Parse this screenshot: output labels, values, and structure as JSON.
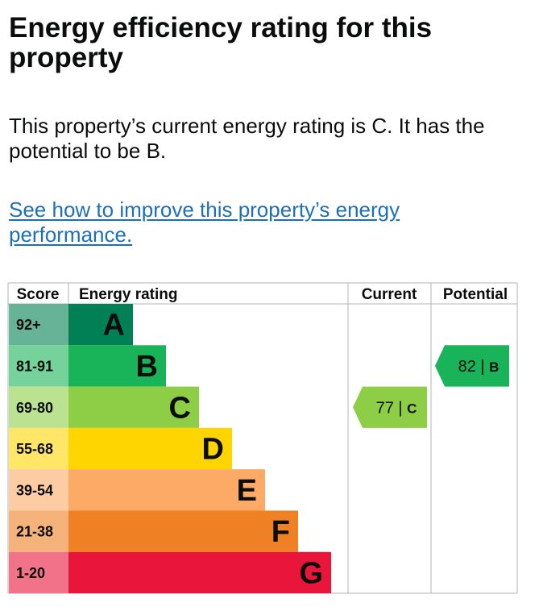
{
  "page": {
    "title": "Energy efficiency rating for this property",
    "summary": "This property’s current energy rating is C. It has the potential to be B.",
    "improve_link": "See how to improve this property’s energy performance."
  },
  "chart_data": {
    "type": "bar",
    "columns": {
      "score": "Score",
      "rating": "Energy rating",
      "current": "Current",
      "potential": "Potential"
    },
    "bands": [
      {
        "score": "92+",
        "letter": "A",
        "color": "#008054",
        "score_bg": "#66b398"
      },
      {
        "score": "81-91",
        "letter": "B",
        "color": "#19b459",
        "score_bg": "#75d29b"
      },
      {
        "score": "69-80",
        "letter": "C",
        "color": "#8dce46",
        "score_bg": "#bbe290"
      },
      {
        "score": "55-68",
        "letter": "D",
        "color": "#ffd500",
        "score_bg": "#ffe666"
      },
      {
        "score": "39-54",
        "letter": "E",
        "color": "#fcaa65",
        "score_bg": "#fdcca3"
      },
      {
        "score": "21-38",
        "letter": "F",
        "color": "#ef8023",
        "score_bg": "#f5b37b"
      },
      {
        "score": "1-20",
        "letter": "G",
        "color": "#e9153b",
        "score_bg": "#f27389"
      }
    ],
    "current": {
      "value": 77,
      "letter": "C",
      "color": "#8dce46"
    },
    "potential": {
      "value": 82,
      "letter": "B",
      "color": "#19b459"
    }
  }
}
